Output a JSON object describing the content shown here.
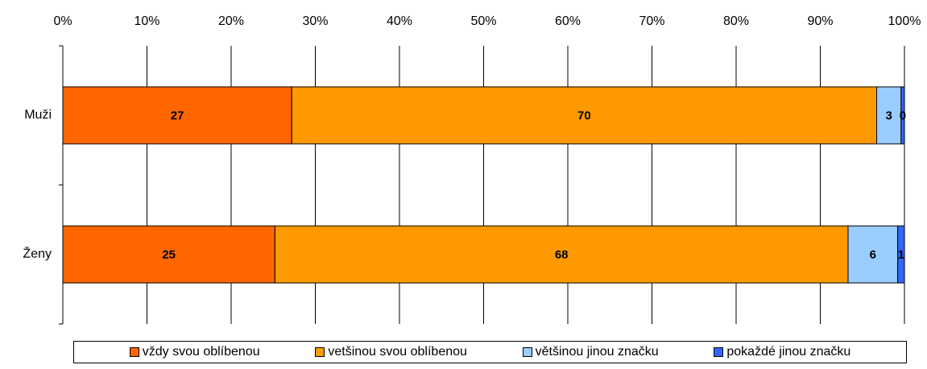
{
  "chart_data": {
    "type": "stacked-barh",
    "categories": [
      "Muži",
      "Ženy"
    ],
    "series": [
      {
        "name": "vždy svou oblíbenou",
        "color": "#ff6600",
        "values": [
          27.2,
          25.2
        ],
        "value_labels": [
          "27",
          "25"
        ]
      },
      {
        "name": "vetšinou svou oblíbenou",
        "color": "#ff9900",
        "values": [
          69.5,
          68.1
        ],
        "value_labels": [
          "70",
          "68"
        ]
      },
      {
        "name": "většinou jinou značku",
        "color": "#99ccff",
        "values": [
          2.9,
          5.9
        ],
        "value_labels": [
          "3",
          "6"
        ]
      },
      {
        "name": "pokaždé jinou značku",
        "color": "#3366ff",
        "values": [
          0.4,
          0.8
        ],
        "value_labels": [
          "0",
          "1"
        ]
      }
    ],
    "xlim": [
      0,
      100
    ],
    "xticks": [
      {
        "value": 0,
        "label": "0%"
      },
      {
        "value": 10,
        "label": "10%"
      },
      {
        "value": 20,
        "label": "20%"
      },
      {
        "value": 30,
        "label": "30%"
      },
      {
        "value": 40,
        "label": "40%"
      },
      {
        "value": 50,
        "label": "50%"
      },
      {
        "value": 60,
        "label": "60%"
      },
      {
        "value": 70,
        "label": "70%"
      },
      {
        "value": 80,
        "label": "80%"
      },
      {
        "value": 90,
        "label": "90%"
      },
      {
        "value": 100,
        "label": "100%"
      }
    ],
    "grid": true
  }
}
